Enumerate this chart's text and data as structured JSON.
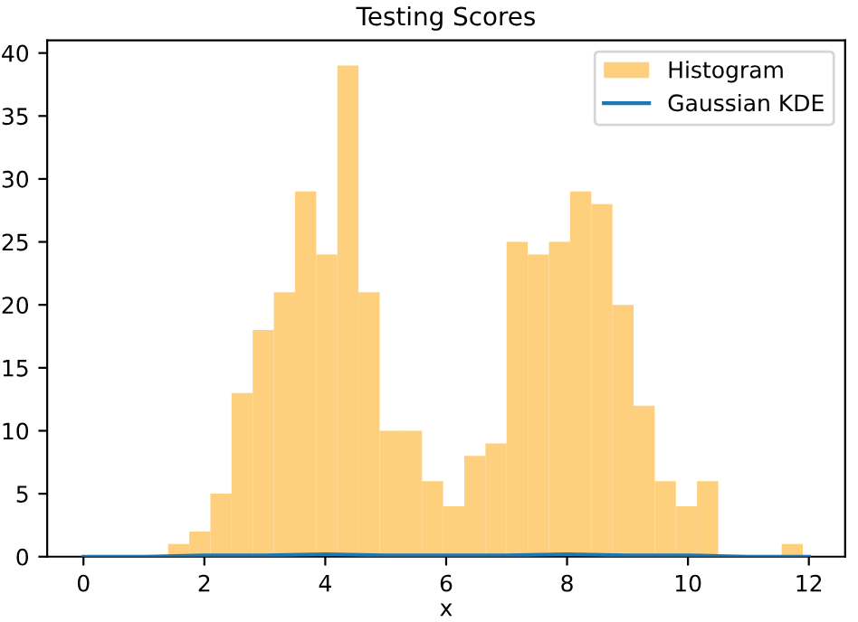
{
  "chart_data": {
    "type": "histogram",
    "title": "Testing Scores",
    "xlabel": "x",
    "bins": [
      1.4,
      1.75,
      2.1,
      2.45,
      2.8,
      3.15,
      3.5,
      3.85,
      4.2,
      4.55,
      4.9,
      5.25,
      5.6,
      5.95,
      6.3,
      6.65,
      7.0,
      7.35,
      7.7,
      8.05,
      8.4,
      8.75,
      9.1,
      9.45,
      9.8,
      10.15,
      10.5,
      10.85,
      11.2,
      11.55,
      11.9
    ],
    "series": [
      {
        "name": "Histogram",
        "color": "#fecf7c",
        "values": [
          1,
          2,
          5,
          13,
          18,
          21,
          29,
          24,
          39,
          21,
          10,
          10,
          6,
          4,
          8,
          9,
          25,
          24,
          25,
          29,
          28,
          20,
          12,
          6,
          4,
          6,
          0,
          0,
          0,
          1
        ]
      },
      {
        "name": "Gaussian KDE",
        "type": "line",
        "color": "#1f77b4",
        "x": [
          0,
          1,
          2,
          3,
          4,
          5,
          6,
          7,
          8,
          9,
          10,
          11,
          12
        ],
        "values": [
          0,
          0,
          0.1,
          0.1,
          0.2,
          0.1,
          0.1,
          0.1,
          0.2,
          0.1,
          0.1,
          0,
          0
        ]
      }
    ],
    "xlim": [
      -0.6,
      12.6
    ],
    "ylim": [
      0,
      41
    ],
    "xticks": [
      0,
      2,
      4,
      6,
      8,
      10,
      12
    ],
    "yticks": [
      0,
      5,
      10,
      15,
      20,
      25,
      30,
      35,
      40
    ],
    "legend": "top right"
  }
}
